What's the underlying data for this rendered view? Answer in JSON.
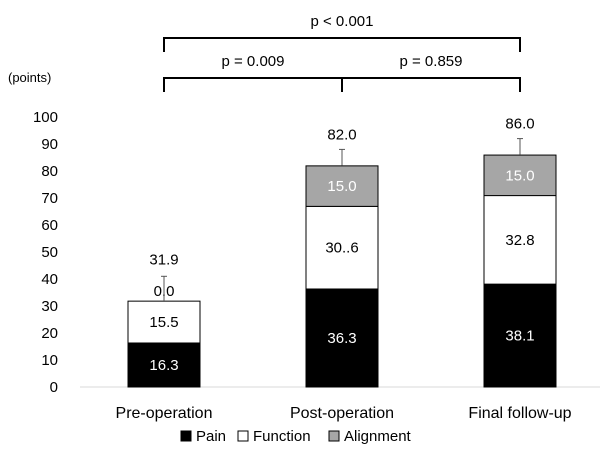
{
  "chart_data": {
    "type": "bar",
    "stacked": true,
    "unit_label": "(points)",
    "categories": [
      "Pre-operation",
      "Post-operation",
      "Final follow-up"
    ],
    "series": [
      {
        "name": "Pain",
        "values": [
          16.3,
          36.3,
          38.1
        ],
        "value_labels": [
          "16.3",
          "36.3",
          "38.1"
        ],
        "color": "#000000",
        "text_color": "#ffffff"
      },
      {
        "name": "Function",
        "values": [
          15.5,
          30.6,
          32.8
        ],
        "value_labels": [
          "15.5",
          "30..6",
          "32.8"
        ],
        "color": "#ffffff",
        "text_color": "#000000"
      },
      {
        "name": "Alignment",
        "values": [
          0.0,
          15.0,
          15.0
        ],
        "value_labels": [
          "0.0",
          "15.0",
          "15.0"
        ],
        "color": "#a6a6a6",
        "text_color": "#ffffff"
      }
    ],
    "totals": [
      31.9,
      82.0,
      86.0
    ],
    "total_labels": [
      "31.9",
      "82.0",
      "86.0"
    ],
    "error_bar_tops": [
      41,
      88,
      92
    ],
    "ylim": [
      0,
      100
    ],
    "yticks": [
      0,
      10,
      20,
      30,
      40,
      50,
      60,
      70,
      80,
      90,
      100
    ],
    "grid": false,
    "legend_position": "bottom",
    "comparisons": [
      {
        "from": 0,
        "to": 2,
        "label": "p < 0.001"
      },
      {
        "from": 0,
        "to": 1,
        "label": "p = 0.009"
      },
      {
        "from": 1,
        "to": 2,
        "label": "p = 0.859"
      }
    ]
  }
}
